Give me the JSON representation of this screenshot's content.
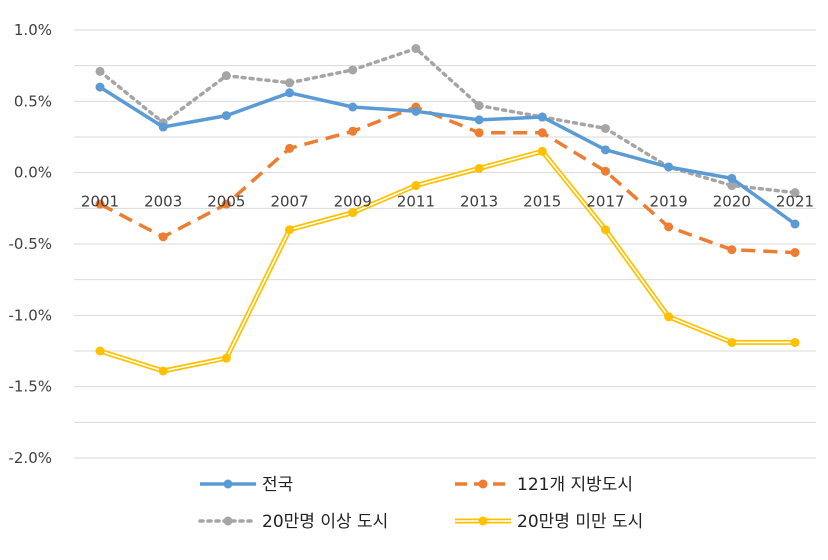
{
  "chart_data": {
    "type": "line",
    "title": "",
    "xlabel": "",
    "ylabel": "",
    "categories": [
      "2001",
      "2003",
      "2005",
      "2007",
      "2009",
      "2011",
      "2013",
      "2015",
      "2017",
      "2019",
      "2020",
      "2021"
    ],
    "ylim": [
      -2.0,
      1.0
    ],
    "y_ticks": [
      1.0,
      0.5,
      0.0,
      -0.5,
      -1.0,
      -1.5,
      -2.0
    ],
    "y_tick_labels": [
      "1.0%",
      "0.5%",
      "0.0%",
      "-0.5%",
      "-1.0%",
      "-1.5%",
      "-2.0%"
    ],
    "grid": true,
    "legend_position": "bottom",
    "series": [
      {
        "name": "전국",
        "color": "#5b9bd5",
        "style": "solid",
        "values": [
          0.6,
          0.32,
          0.4,
          0.56,
          0.46,
          0.43,
          0.37,
          0.39,
          0.16,
          0.04,
          -0.04,
          -0.36
        ]
      },
      {
        "name": "121개 지방도시",
        "color": "#ed7d31",
        "style": "dashed",
        "values": [
          -0.22,
          -0.45,
          -0.22,
          0.17,
          0.29,
          0.46,
          0.28,
          0.28,
          0.01,
          -0.38,
          -0.54,
          -0.56
        ]
      },
      {
        "name": "20만명 이상 도시",
        "color": "#a5a5a5",
        "style": "dotted",
        "values": [
          0.71,
          0.35,
          0.68,
          0.63,
          0.72,
          0.87,
          0.47,
          0.39,
          0.31,
          0.04,
          -0.09,
          -0.14
        ]
      },
      {
        "name": "20만명 미만 도시",
        "color": "#ffc000",
        "style": "double",
        "values": [
          -1.25,
          -1.39,
          -1.3,
          -0.4,
          -0.28,
          -0.09,
          0.03,
          0.15,
          -0.4,
          -1.01,
          -1.19,
          -1.19
        ]
      }
    ]
  }
}
